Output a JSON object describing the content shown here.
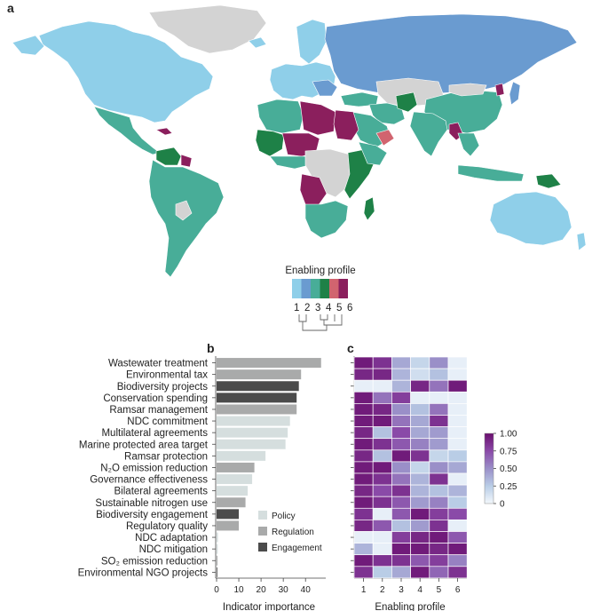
{
  "panels": {
    "a": "a",
    "b": "b",
    "c": "c"
  },
  "map": {
    "legend_title": "Enabling profile",
    "profiles": [
      "1",
      "2",
      "3",
      "4",
      "5",
      "6"
    ],
    "profile_colors": [
      "#8fcfe9",
      "#6a9bd0",
      "#48ad98",
      "#1e8147",
      "#d1646f",
      "#8b1f5d"
    ],
    "no_data_color": "#d3d3d3"
  },
  "chart_data": [
    {
      "type": "bar",
      "orientation": "horizontal",
      "categories": [
        "Wastewater treatment",
        "Environmental tax",
        "Biodiversity projects",
        "Conservation spending",
        "Ramsar management",
        "NDC commitment",
        "Multilateral agreements",
        "Marine protected area target",
        "Ramsar protection",
        "N₂O emission reduction",
        "Governance effectiveness",
        "Bilateral agreements",
        "Sustainable nitrogen use",
        "Biodiversity engagement",
        "Regulatory quality",
        "NDC adaptation",
        "NDC mitigation",
        "SO₂ emission reduction",
        "Environmental NGO projects"
      ],
      "values": [
        47,
        38,
        37,
        36,
        36,
        33,
        32,
        31,
        22,
        17,
        16,
        14,
        13,
        10,
        10,
        0.6,
        0.5,
        0.4,
        0.3
      ],
      "group": [
        "Regulation",
        "Regulation",
        "Engagement",
        "Engagement",
        "Regulation",
        "Policy",
        "Policy",
        "Policy",
        "Policy",
        "Regulation",
        "Policy",
        "Policy",
        "Regulation",
        "Engagement",
        "Regulation",
        "Policy",
        "Policy",
        "Regulation",
        "Engagement"
      ],
      "group_colors": {
        "Policy": "#d5dede",
        "Regulation": "#a9aaaa",
        "Engagement": "#4b4b4b"
      },
      "legend": [
        "Policy",
        "Regulation",
        "Engagement"
      ],
      "xlabel": "Indicator importance",
      "xlim": [
        0,
        50
      ],
      "xticks": [
        0,
        10,
        20,
        30,
        40
      ]
    },
    {
      "type": "heatmap",
      "x": [
        "1",
        "2",
        "3",
        "4",
        "5",
        "6"
      ],
      "xlabel": "Enabling profile",
      "colorbar_ticks": [
        "1.00",
        "0.75",
        "0.50",
        "0.25",
        "0"
      ],
      "colorbar_range": [
        0,
        1
      ],
      "values": [
        [
          0.95,
          0.85,
          0.4,
          0.2,
          0.5,
          0.05
        ],
        [
          0.9,
          0.9,
          0.35,
          0.15,
          0.3,
          0.05
        ],
        [
          0.05,
          0.05,
          0.35,
          0.9,
          0.6,
          0.95
        ],
        [
          0.95,
          0.6,
          0.8,
          0.05,
          0.05,
          0.05
        ],
        [
          0.95,
          0.9,
          0.5,
          0.3,
          0.6,
          0.05
        ],
        [
          0.95,
          0.95,
          0.6,
          0.4,
          0.85,
          0.05
        ],
        [
          0.9,
          0.3,
          0.75,
          0.4,
          0.45,
          0.05
        ],
        [
          0.95,
          0.85,
          0.7,
          0.55,
          0.45,
          0.05
        ],
        [
          0.9,
          0.3,
          0.95,
          0.85,
          0.2,
          0.25
        ],
        [
          0.95,
          0.95,
          0.5,
          0.2,
          0.5,
          0.4
        ],
        [
          0.95,
          0.85,
          0.6,
          0.35,
          0.85,
          0.05
        ],
        [
          0.9,
          0.75,
          0.85,
          0.35,
          0.3,
          0.35
        ],
        [
          0.95,
          0.85,
          0.7,
          0.45,
          0.55,
          0.25
        ],
        [
          0.85,
          0.05,
          0.7,
          0.95,
          0.8,
          0.75
        ],
        [
          0.9,
          0.7,
          0.3,
          0.45,
          0.85,
          0.05
        ],
        [
          0.05,
          0.05,
          0.8,
          0.9,
          0.95,
          0.7
        ],
        [
          0.35,
          0.05,
          0.95,
          0.95,
          0.9,
          0.95
        ],
        [
          0.95,
          0.85,
          0.85,
          0.7,
          0.8,
          0.55
        ],
        [
          0.85,
          0.25,
          0.4,
          0.95,
          0.65,
          0.85
        ]
      ]
    }
  ]
}
